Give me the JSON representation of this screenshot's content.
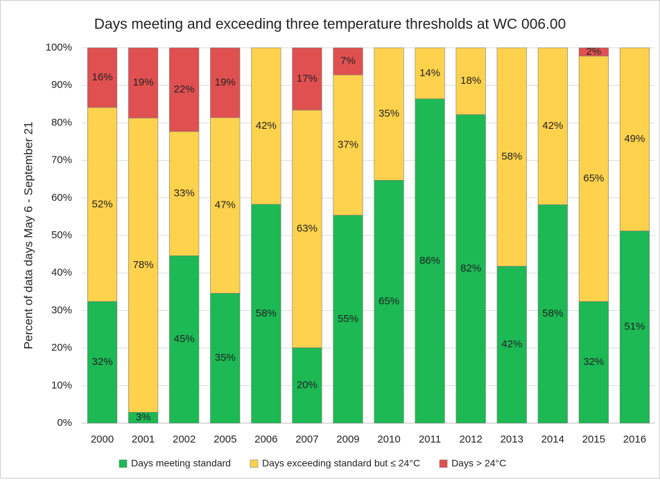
{
  "chart_data": {
    "type": "stacked-bar",
    "title": "Days meeting and exceeding three temperature thresholds at WC 006.00",
    "y_label": "Percent of data days May 6 - September 21",
    "categories": [
      "2000",
      "2001",
      "2002",
      "2005",
      "2006",
      "2007",
      "2009",
      "2010",
      "2011",
      "2012",
      "2013",
      "2014",
      "2015",
      "2016"
    ],
    "series": [
      {
        "name": "Days meeting standard",
        "color": "#1db954",
        "values": [
          32.4,
          2.9,
          44.6,
          34.6,
          58.3,
          20.1,
          55.4,
          64.7,
          86.4,
          82.2,
          41.8,
          58.2,
          32.4,
          51.2
        ],
        "value_labels": [
          "32%",
          "3%",
          "45%",
          "35%",
          "58%",
          "20%",
          "55%",
          "65%",
          "86%",
          "82%",
          "42%",
          "58%",
          "32%",
          "51%"
        ]
      },
      {
        "name": "Days exceeding standard but ≤ 24°C",
        "color": "#ffd24d",
        "values": [
          51.7,
          78.4,
          33.1,
          46.8,
          41.7,
          63.3,
          37.4,
          35.3,
          13.6,
          17.8,
          58.2,
          41.8,
          65.4,
          48.8
        ],
        "value_labels": [
          "52%",
          "78%",
          "33%",
          "47%",
          "42%",
          "63%",
          "37%",
          "35%",
          "14%",
          "18%",
          "58%",
          "42%",
          "65%",
          "49%"
        ]
      },
      {
        "name": "Days > 24°C",
        "color": "#e05050",
        "values": [
          15.9,
          18.7,
          22.3,
          18.6,
          null,
          16.6,
          7.2,
          null,
          null,
          null,
          null,
          null,
          2.2,
          null
        ],
        "value_labels": [
          "16%",
          "19%",
          "22%",
          "19%",
          null,
          "17%",
          "7%",
          null,
          null,
          null,
          null,
          null,
          "2%",
          null
        ]
      }
    ],
    "ylim": [
      0,
      100
    ],
    "yticks": [
      {
        "value": 0,
        "label": "0%"
      },
      {
        "value": 10,
        "label": "10%"
      },
      {
        "value": 20,
        "label": "20%"
      },
      {
        "value": 30,
        "label": "30%"
      },
      {
        "value": 40,
        "label": "40%"
      },
      {
        "value": 50,
        "label": "50%"
      },
      {
        "value": 60,
        "label": "60%"
      },
      {
        "value": 70,
        "label": "70%"
      },
      {
        "value": 80,
        "label": "80%"
      },
      {
        "value": 90,
        "label": "90%"
      },
      {
        "value": 100,
        "label": "100%"
      }
    ],
    "grid": true,
    "legend": "bottom"
  }
}
